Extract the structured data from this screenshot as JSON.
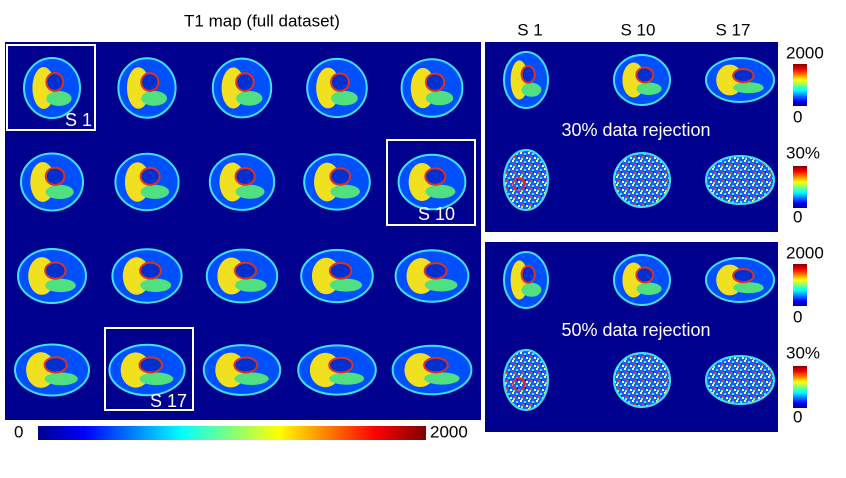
{
  "figure": {
    "title": "T1 map (full dataset)",
    "slice_boxes": [
      "S 1",
      "S 10",
      "S 17"
    ],
    "colorbar": {
      "min": "0",
      "max": "2000"
    },
    "columns": [
      "S 1",
      "S 10",
      "S 17"
    ],
    "panels": [
      {
        "t1_colorbar": {
          "max": "2000",
          "min": "0"
        },
        "caption": "30% data rejection",
        "error_colorbar": {
          "max": "30%",
          "min": "0"
        }
      },
      {
        "t1_colorbar": {
          "max": "2000",
          "min": "0"
        },
        "caption": "50% data rejection",
        "error_colorbar": {
          "max": "30%",
          "min": "0"
        }
      }
    ]
  }
}
